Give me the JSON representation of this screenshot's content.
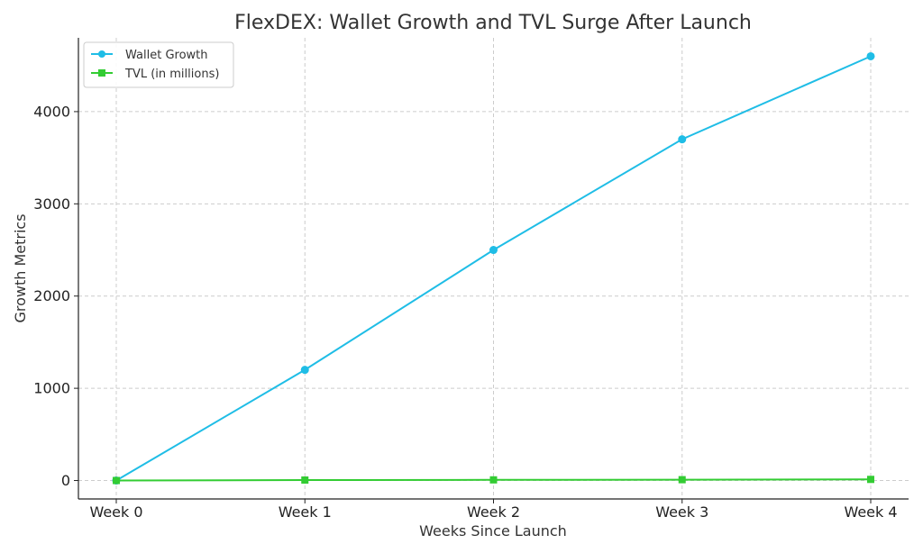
{
  "chart_data": {
    "type": "line",
    "title": "FlexDEX: Wallet Growth and TVL Surge After Launch",
    "xlabel": "Weeks Since Launch",
    "ylabel": "Growth Metrics",
    "categories": [
      "Week 0",
      "Week 1",
      "Week 2",
      "Week 3",
      "Week 4"
    ],
    "ylim": [
      -200,
      4800
    ],
    "yticks": [
      0,
      1000,
      2000,
      3000,
      4000
    ],
    "grid": true,
    "legend_position": "top-left",
    "series": [
      {
        "name": "Wallet Growth",
        "values": [
          0,
          1200,
          2500,
          3700,
          4600
        ],
        "color": "#1fbde6",
        "marker": "circle"
      },
      {
        "name": "TVL (in millions)",
        "values": [
          0,
          5,
          7,
          9,
          12
        ],
        "color": "#33cc33",
        "marker": "square"
      }
    ]
  }
}
